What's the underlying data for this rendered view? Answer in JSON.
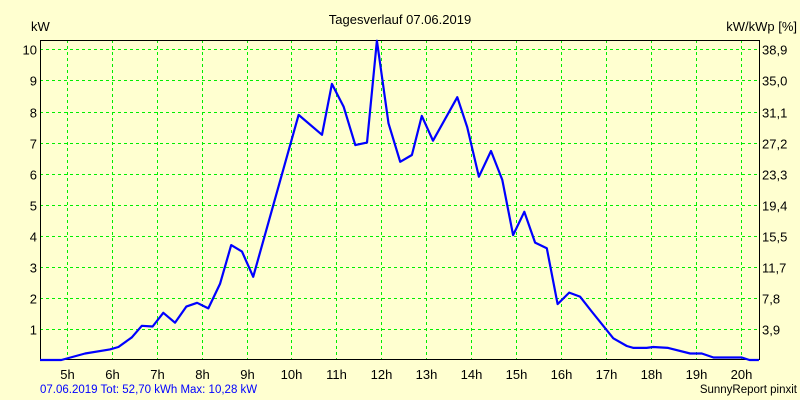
{
  "chart_data": {
    "type": "line",
    "title": "Tagesverlauf 07.06.2019",
    "ylabel": "kW",
    "ylabel_right": "kW/kWp [%]",
    "xlim": [
      4.4,
      20.4
    ],
    "ylim": [
      0,
      10.28
    ],
    "grid": true,
    "x_ticks": [
      5,
      6,
      7,
      8,
      9,
      10,
      11,
      12,
      13,
      14,
      15,
      16,
      17,
      18,
      19,
      20
    ],
    "x_tick_labels": [
      "5h",
      "6h",
      "7h",
      "8h",
      "9h",
      "10h",
      "11h",
      "12h",
      "13h",
      "14h",
      "15h",
      "16h",
      "17h",
      "18h",
      "19h",
      "20h"
    ],
    "y_ticks": [
      1,
      2,
      3,
      4,
      5,
      6,
      7,
      8,
      9,
      10
    ],
    "y_tick_labels": [
      "1",
      "2",
      "3",
      "4",
      "5",
      "6",
      "7",
      "8",
      "9",
      "10"
    ],
    "y_right_ticks": [
      1,
      2,
      3,
      4,
      5,
      6,
      7,
      8,
      9,
      10
    ],
    "y_right_tick_labels": [
      "3,9",
      "7,8",
      "11,7",
      "15,5",
      "19,4",
      "23,3",
      "27,2",
      "31,1",
      "35,0",
      "38,9"
    ],
    "series": [
      {
        "name": "kW",
        "color": "#0000ff",
        "x": [
          4.4,
          4.88,
          5.41,
          5.96,
          6.15,
          6.45,
          6.67,
          6.91,
          7.15,
          7.41,
          7.66,
          7.9,
          8.15,
          8.41,
          8.66,
          8.9,
          9.15,
          10.16,
          10.68,
          10.9,
          11.16,
          11.42,
          11.68,
          11.9,
          12.16,
          12.42,
          12.68,
          12.9,
          13.15,
          13.69,
          13.91,
          14.17,
          14.44,
          14.69,
          14.93,
          15.18,
          15.42,
          15.68,
          15.92,
          16.18,
          16.42,
          16.68,
          17.16,
          17.46,
          17.61,
          17.9,
          18.05,
          18.38,
          18.87,
          19.13,
          19.39,
          20.02,
          20.19,
          20.4
        ],
        "y": [
          0,
          0,
          0.21,
          0.34,
          0.42,
          0.73,
          1.1,
          1.08,
          1.52,
          1.2,
          1.72,
          1.84,
          1.66,
          2.45,
          3.7,
          3.49,
          2.68,
          7.89,
          7.25,
          8.89,
          8.16,
          6.92,
          7.0,
          10.28,
          7.62,
          6.38,
          6.6,
          7.86,
          7.06,
          8.46,
          7.5,
          5.9,
          6.73,
          5.8,
          4.02,
          4.77,
          3.78,
          3.6,
          1.8,
          2.17,
          2.04,
          1.56,
          0.7,
          0.45,
          0.39,
          0.39,
          0.42,
          0.39,
          0.21,
          0.21,
          0.08,
          0.08,
          0,
          0
        ]
      }
    ]
  },
  "footer": {
    "left": "07.06.2019 Tot: 52,70 kWh Max: 10,28 kW",
    "right": "SunnyReport pinxit"
  },
  "colors": {
    "background": "#ffffd0",
    "grid": "#00ee00",
    "line": "#0000ff",
    "footer_left": "#0000ff"
  }
}
